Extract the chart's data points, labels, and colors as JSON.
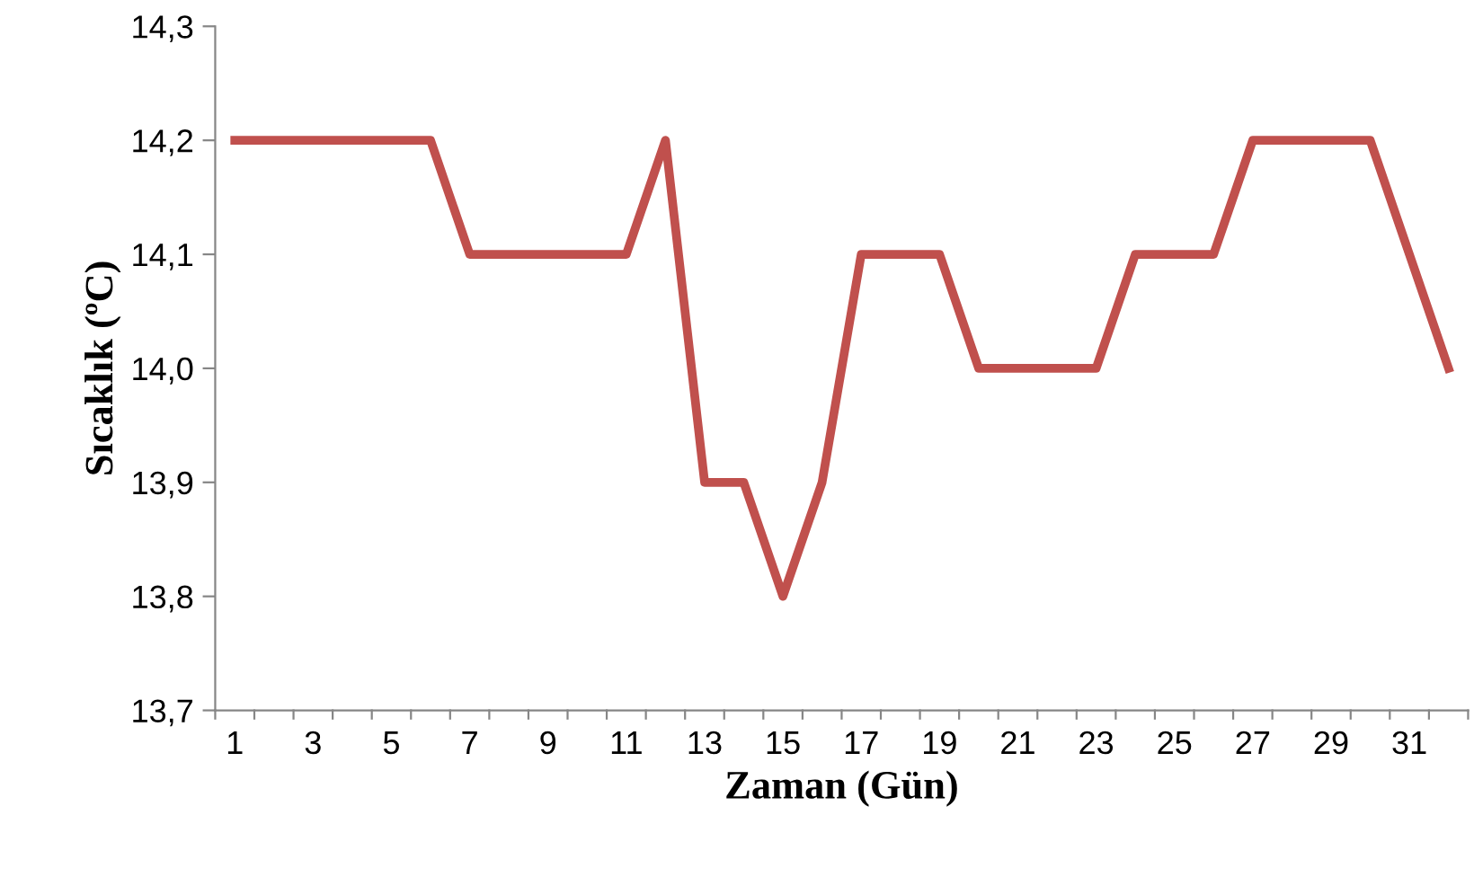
{
  "chart_data": {
    "type": "line",
    "xlabel": "Zaman (Gün)",
    "ylabel": "Sıcaklık (ºC)",
    "categories": [
      "1",
      null,
      "3",
      null,
      "5",
      null,
      "7",
      null,
      "9",
      null,
      "11",
      null,
      "13",
      null,
      "15",
      null,
      "17",
      null,
      "19",
      null,
      "21",
      null,
      "23",
      null,
      "25",
      null,
      "27",
      null,
      "29",
      null,
      "31",
      null
    ],
    "series": [
      {
        "color": "#c0504d",
        "values": [
          14.2,
          14.2,
          14.2,
          14.2,
          14.2,
          14.2,
          14.1,
          14.1,
          14.1,
          14.1,
          14.1,
          14.2,
          13.9,
          13.9,
          13.8,
          13.9,
          14.1,
          14.1,
          14.1,
          14.0,
          14.0,
          14.0,
          14.0,
          14.1,
          14.1,
          14.1,
          14.2,
          14.2,
          14.2,
          14.2,
          14.1,
          14.0
        ]
      }
    ],
    "ylim": [
      13.7,
      14.3
    ],
    "yticks": [
      {
        "value": 13.7,
        "label": "13,7"
      },
      {
        "value": 13.8,
        "label": "13,8"
      },
      {
        "value": 13.9,
        "label": "13,9"
      },
      {
        "value": 14.0,
        "label": "14,0"
      },
      {
        "value": 14.1,
        "label": "14,1"
      },
      {
        "value": 14.2,
        "label": "14,2"
      },
      {
        "value": 14.3,
        "label": "14,3"
      }
    ],
    "grid": false,
    "legend": false,
    "marker": "none",
    "line_style": "solid"
  }
}
